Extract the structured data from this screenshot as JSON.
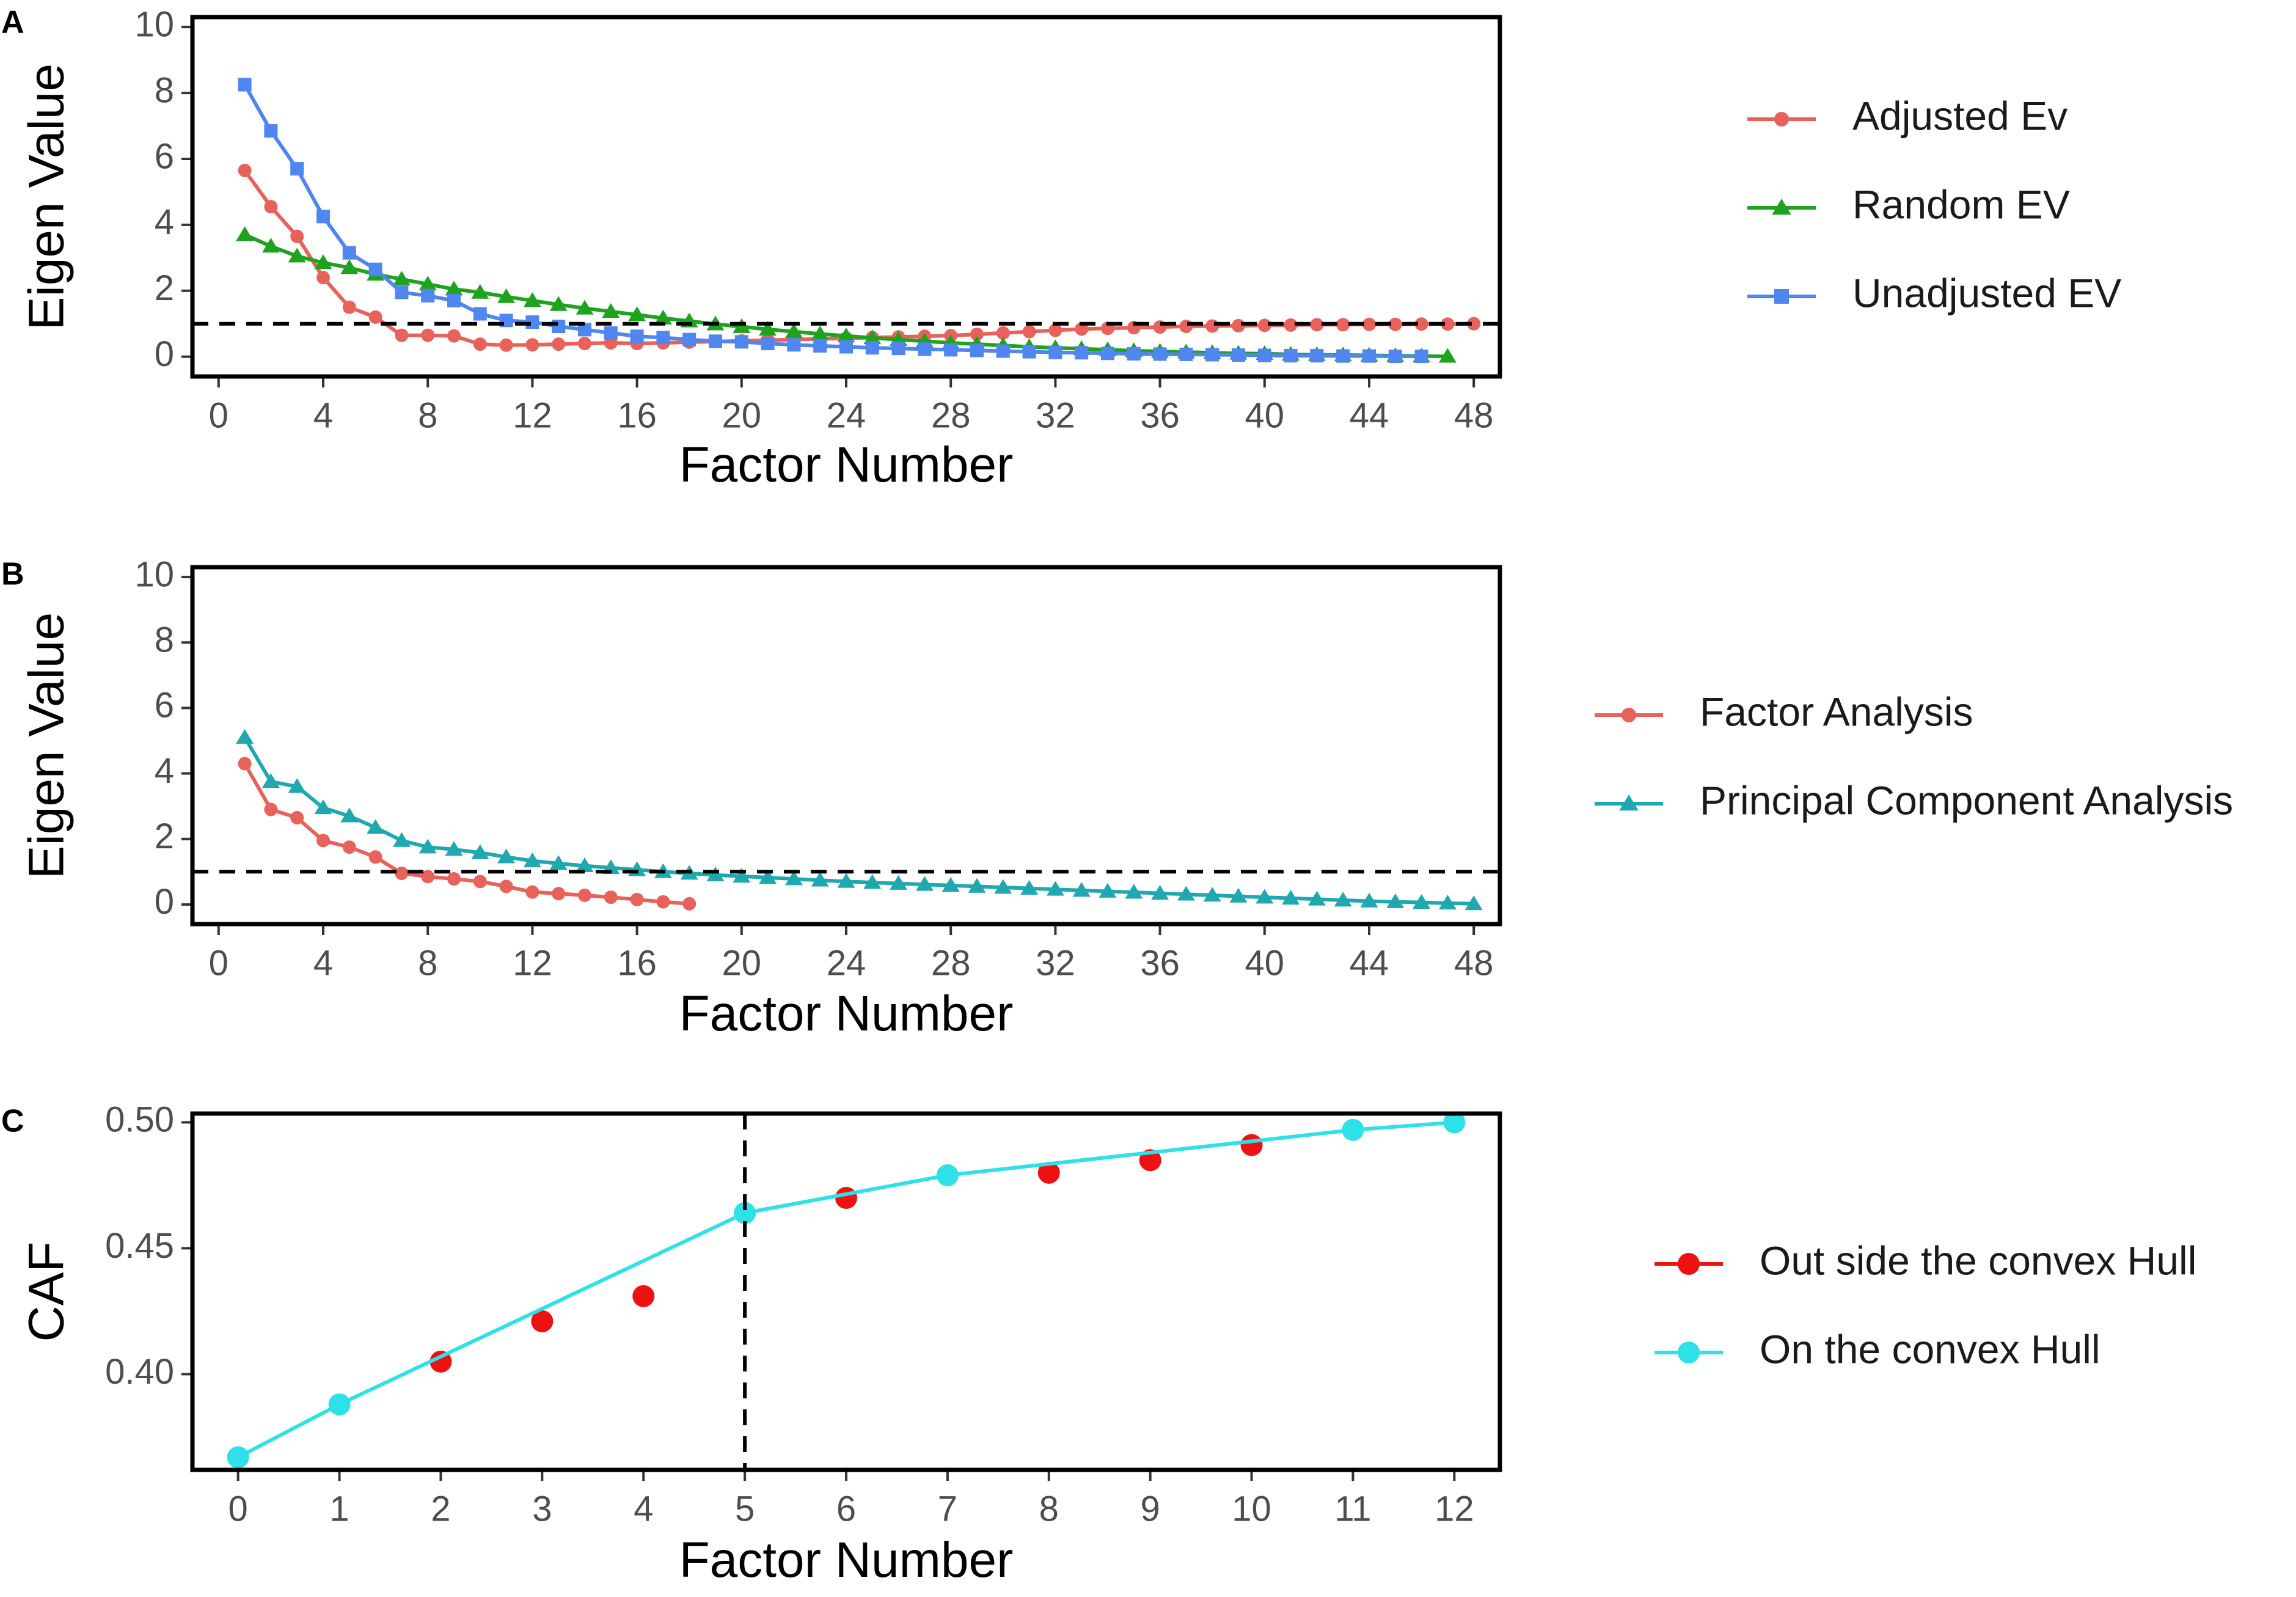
{
  "chart_data": [
    {
      "panel": "A",
      "type": "line",
      "title": "",
      "xlabel": "Factor Number",
      "ylabel": "Eigen Value",
      "xlim": [
        -1,
        49
      ],
      "ylim": [
        -0.6,
        10.3
      ],
      "xticks": [
        0,
        4,
        8,
        12,
        16,
        20,
        24,
        28,
        32,
        36,
        40,
        44,
        48
      ],
      "yticks": [
        0,
        2,
        4,
        6,
        8,
        10
      ],
      "reference_line": {
        "orientation": "horizontal",
        "value": 1,
        "style": "dashed"
      },
      "legend_position": "right",
      "series": [
        {
          "name": "Adjusted Ev",
          "color": "#E8625B",
          "marker": "circle",
          "x": [
            1,
            2,
            3,
            4,
            5,
            6,
            7,
            8,
            9,
            10,
            11,
            12,
            13,
            14,
            15,
            16,
            17,
            18,
            19,
            20,
            21,
            22,
            23,
            24,
            25,
            26,
            27,
            28,
            29,
            30,
            31,
            32,
            33,
            34,
            35,
            36,
            37,
            38,
            39,
            40,
            41,
            42,
            43,
            44,
            45,
            46,
            47,
            48
          ],
          "values": [
            5.65,
            4.55,
            3.65,
            2.4,
            1.5,
            1.2,
            0.65,
            0.65,
            0.63,
            0.38,
            0.35,
            0.36,
            0.38,
            0.4,
            0.42,
            0.4,
            0.42,
            0.44,
            0.46,
            0.48,
            0.5,
            0.52,
            0.54,
            0.56,
            0.58,
            0.6,
            0.62,
            0.64,
            0.68,
            0.72,
            0.76,
            0.8,
            0.84,
            0.86,
            0.88,
            0.9,
            0.92,
            0.93,
            0.94,
            0.95,
            0.96,
            0.97,
            0.97,
            0.98,
            0.98,
            0.99,
            0.99,
            1.0
          ]
        },
        {
          "name": "Random EV",
          "color": "#1FA31F",
          "marker": "triangle",
          "x": [
            1,
            2,
            3,
            4,
            5,
            6,
            7,
            8,
            9,
            10,
            11,
            12,
            13,
            14,
            15,
            16,
            17,
            18,
            19,
            20,
            21,
            22,
            23,
            24,
            25,
            26,
            27,
            28,
            29,
            30,
            31,
            32,
            33,
            34,
            35,
            36,
            37,
            38,
            39,
            40,
            41,
            42,
            43,
            44,
            45,
            46,
            47
          ],
          "values": [
            3.7,
            3.35,
            3.05,
            2.85,
            2.7,
            2.5,
            2.35,
            2.2,
            2.05,
            1.95,
            1.82,
            1.7,
            1.58,
            1.47,
            1.37,
            1.27,
            1.17,
            1.08,
            0.99,
            0.91,
            0.83,
            0.76,
            0.69,
            0.63,
            0.57,
            0.52,
            0.47,
            0.42,
            0.38,
            0.34,
            0.3,
            0.27,
            0.24,
            0.21,
            0.18,
            0.16,
            0.14,
            0.12,
            0.1,
            0.09,
            0.07,
            0.06,
            0.05,
            0.04,
            0.03,
            0.02,
            0.01
          ]
        },
        {
          "name": "Unadjusted EV",
          "color": "#4F86F0",
          "marker": "square",
          "x": [
            1,
            2,
            3,
            4,
            5,
            6,
            7,
            8,
            9,
            10,
            11,
            12,
            13,
            14,
            15,
            16,
            17,
            18,
            19,
            20,
            21,
            22,
            23,
            24,
            25,
            26,
            27,
            28,
            29,
            30,
            31,
            32,
            33,
            34,
            35,
            36,
            37,
            38,
            39,
            40,
            41,
            42,
            43,
            44,
            45,
            46
          ],
          "values": [
            8.25,
            6.85,
            5.7,
            4.25,
            3.15,
            2.65,
            1.95,
            1.85,
            1.7,
            1.3,
            1.1,
            1.05,
            0.92,
            0.82,
            0.72,
            0.62,
            0.58,
            0.52,
            0.47,
            0.45,
            0.4,
            0.36,
            0.33,
            0.3,
            0.27,
            0.25,
            0.23,
            0.21,
            0.19,
            0.17,
            0.15,
            0.13,
            0.12,
            0.1,
            0.09,
            0.08,
            0.07,
            0.06,
            0.05,
            0.04,
            0.03,
            0.03,
            0.02,
            0.02,
            0.01,
            0.01
          ]
        }
      ]
    },
    {
      "panel": "B",
      "type": "line",
      "title": "",
      "xlabel": "Factor Number",
      "ylabel": "Eigen Value",
      "xlim": [
        -1,
        49
      ],
      "ylim": [
        -0.6,
        10.3
      ],
      "xticks": [
        0,
        4,
        8,
        12,
        16,
        20,
        24,
        28,
        32,
        36,
        40,
        44,
        48
      ],
      "yticks": [
        0,
        2,
        4,
        6,
        8,
        10
      ],
      "reference_line": {
        "orientation": "horizontal",
        "value": 1,
        "style": "dashed"
      },
      "legend_position": "right",
      "series": [
        {
          "name": "Factor Analysis",
          "color": "#E8625B",
          "marker": "circle",
          "x": [
            1,
            2,
            3,
            4,
            5,
            6,
            7,
            8,
            9,
            10,
            11,
            12,
            13,
            14,
            15,
            16,
            17,
            18
          ],
          "values": [
            4.3,
            2.9,
            2.65,
            1.95,
            1.75,
            1.45,
            0.95,
            0.85,
            0.78,
            0.7,
            0.55,
            0.38,
            0.33,
            0.28,
            0.22,
            0.15,
            0.08,
            0.02
          ]
        },
        {
          "name": "Principal Component Analysis",
          "color": "#1FA8B0",
          "marker": "triangle",
          "x": [
            1,
            2,
            3,
            4,
            5,
            6,
            7,
            8,
            9,
            10,
            11,
            12,
            13,
            14,
            15,
            16,
            17,
            18,
            19,
            20,
            21,
            22,
            23,
            24,
            25,
            26,
            27,
            28,
            29,
            30,
            31,
            32,
            33,
            34,
            35,
            36,
            37,
            38,
            39,
            40,
            41,
            42,
            43,
            44,
            45,
            46,
            47,
            48
          ],
          "values": [
            5.1,
            3.75,
            3.6,
            2.95,
            2.7,
            2.35,
            1.95,
            1.75,
            1.68,
            1.58,
            1.45,
            1.33,
            1.25,
            1.18,
            1.12,
            1.06,
            1.0,
            0.95,
            0.9,
            0.86,
            0.82,
            0.78,
            0.74,
            0.7,
            0.67,
            0.64,
            0.61,
            0.58,
            0.55,
            0.52,
            0.49,
            0.46,
            0.43,
            0.4,
            0.37,
            0.34,
            0.31,
            0.28,
            0.25,
            0.22,
            0.19,
            0.16,
            0.13,
            0.1,
            0.08,
            0.06,
            0.04,
            0.02
          ]
        }
      ]
    },
    {
      "panel": "C",
      "type": "scatter",
      "title": "",
      "xlabel": "Factor Number",
      "ylabel": "CAF",
      "xlim": [
        -0.45,
        12.45
      ],
      "ylim": [
        0.362,
        0.5035
      ],
      "xticks": [
        0,
        1,
        2,
        3,
        4,
        5,
        6,
        7,
        8,
        9,
        10,
        11,
        12
      ],
      "yticks": [
        0.4,
        0.45,
        0.5
      ],
      "ytick_labels": [
        "0.40",
        "0.45",
        "0.50"
      ],
      "reference_line": {
        "orientation": "vertical",
        "value": 5,
        "style": "dashed"
      },
      "legend_position": "right",
      "series": [
        {
          "name": "Out side the convex Hull",
          "color": "#EE1111",
          "marker": "circle",
          "connect": false,
          "x": [
            2,
            3,
            4,
            6,
            8,
            9,
            10
          ],
          "values": [
            0.405,
            0.421,
            0.431,
            0.47,
            0.48,
            0.485,
            0.491
          ]
        },
        {
          "name": "On the convex Hull",
          "color": "#2EE0E8",
          "marker": "circle",
          "connect": true,
          "x": [
            0,
            1,
            5,
            7,
            11,
            12
          ],
          "values": [
            0.367,
            0.388,
            0.464,
            0.479,
            0.497,
            0.5
          ]
        }
      ]
    }
  ]
}
